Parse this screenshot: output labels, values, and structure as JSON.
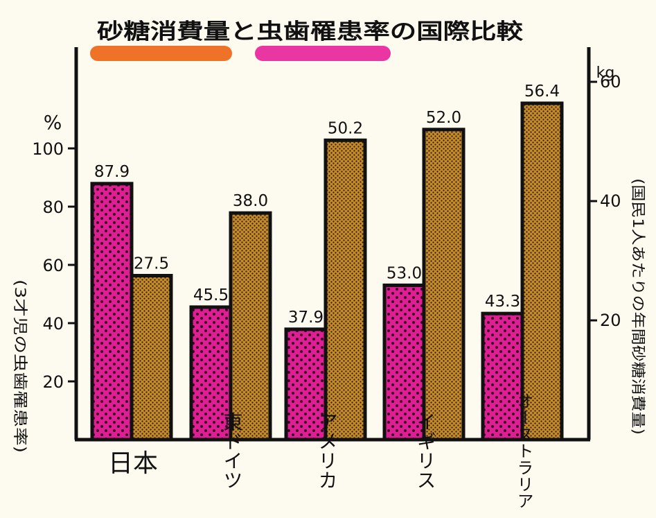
{
  "chart_data": {
    "type": "bar",
    "title": "砂糖消費量と虫歯罹患率の国際比較",
    "categories": [
      "日本",
      "東ドイツ",
      "アメリカ",
      "イギリス",
      "オーストラリア"
    ],
    "series": [
      {
        "name": "3才児の虫歯罹患率",
        "axis": "left",
        "color": "#e8209a",
        "values": [
          87.9,
          45.5,
          37.9,
          53.0,
          43.3
        ],
        "labels": [
          "87.9",
          "45.5",
          "37.9",
          "53.0",
          "43.3"
        ]
      },
      {
        "name": "国民1人あたりの年間砂糖消費量",
        "axis": "right",
        "color": "#c48a2a",
        "values": [
          27.5,
          38.0,
          50.2,
          52.0,
          56.4
        ],
        "labels": [
          "27.5",
          "38.0",
          "50.2",
          "52.0",
          "56.4"
        ]
      }
    ],
    "left_axis": {
      "label": "(3才児の虫歯罹患率)",
      "unit": "%",
      "ticks": [
        20,
        40,
        60,
        80,
        100
      ],
      "tick_labels": [
        "20",
        "40",
        "60",
        "80",
        "100"
      ]
    },
    "right_axis": {
      "label": "(国民1人あたりの年間砂糖消費量)",
      "unit": "kg",
      "ticks": [
        20,
        40,
        60
      ],
      "tick_labels": [
        "20",
        "40",
        "60"
      ]
    },
    "legend": {
      "placement": "top",
      "swatch_colors": [
        "#ee6a1e",
        "#e8209a"
      ]
    }
  }
}
